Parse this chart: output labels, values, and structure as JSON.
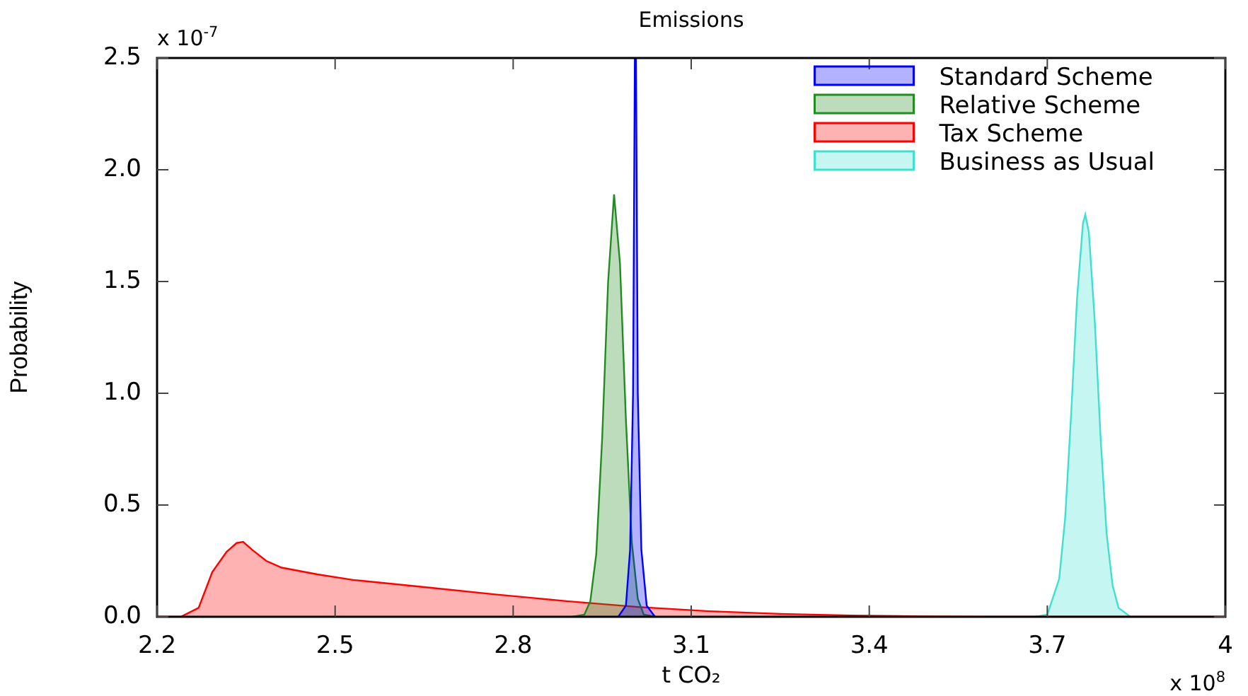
{
  "chart_data": {
    "type": "area",
    "title": "Emissions",
    "xlabel": "t CO₂",
    "ylabel": "Probability",
    "annotations": [
      "x 10$^{-7}$",
      "x 10$^{8}$"
    ],
    "xlim": [
      2.2,
      4
    ],
    "xticks": [
      2.2,
      2.5,
      2.8,
      3.1,
      3.4,
      3.7,
      4
    ],
    "ylim": [
      0,
      2.5
    ],
    "yticks": [
      {
        "value": 0,
        "label": "0.0"
      },
      0.5,
      {
        "value": 1,
        "label": "1.0"
      },
      1.5,
      {
        "value": 2,
        "label": "2.0"
      },
      2.5
    ],
    "grid": false,
    "legend": "top right",
    "series": [
      {
        "name": "Standard Scheme",
        "color": "#0000ff",
        "x": [
          2.977,
          2.99,
          2.997,
          3.002,
          3.005,
          3.007,
          3.01,
          3.016,
          3.025,
          3.039
        ],
        "values": [
          0,
          0.05,
          0.3,
          1.0,
          2.5,
          2.5,
          1.0,
          0.3,
          0.05,
          0
        ]
      },
      {
        "name": "Relative Scheme",
        "color": "#228b22",
        "x": [
          2.9,
          2.92,
          2.93,
          2.94,
          2.95,
          2.96,
          2.97,
          2.98,
          2.99,
          3.0,
          3.01,
          3.02,
          3.04
        ],
        "values": [
          0,
          0.01,
          0.07,
          0.28,
          0.8,
          1.5,
          1.89,
          1.58,
          0.88,
          0.33,
          0.08,
          0.01,
          0
        ]
      },
      {
        "name": "Tax Scheme",
        "color": "#ff0000",
        "x": [
          2.2,
          2.24,
          2.27,
          2.293,
          2.317,
          2.334,
          2.345,
          2.36,
          2.384,
          2.41,
          2.47,
          2.53,
          2.65,
          2.77,
          2.89,
          3.01,
          3.13,
          3.25,
          3.37,
          3.49,
          3.6,
          4
        ],
        "values": [
          0,
          0,
          0.04,
          0.2,
          0.29,
          0.33,
          0.335,
          0.3,
          0.25,
          0.22,
          0.19,
          0.165,
          0.133,
          0.1,
          0.07,
          0.044,
          0.025,
          0.013,
          0.006,
          0.002,
          0,
          0
        ]
      },
      {
        "name": "Business as Usual",
        "color": "#40e0d0",
        "x": [
          3.68,
          3.7,
          3.72,
          3.73,
          3.74,
          3.75,
          3.76,
          3.764,
          3.77,
          3.78,
          3.79,
          3.8,
          3.81,
          3.82,
          3.84
        ],
        "values": [
          0,
          0.01,
          0.17,
          0.44,
          0.9,
          1.42,
          1.76,
          1.8,
          1.72,
          1.32,
          0.79,
          0.37,
          0.14,
          0.04,
          0
        ]
      }
    ]
  }
}
